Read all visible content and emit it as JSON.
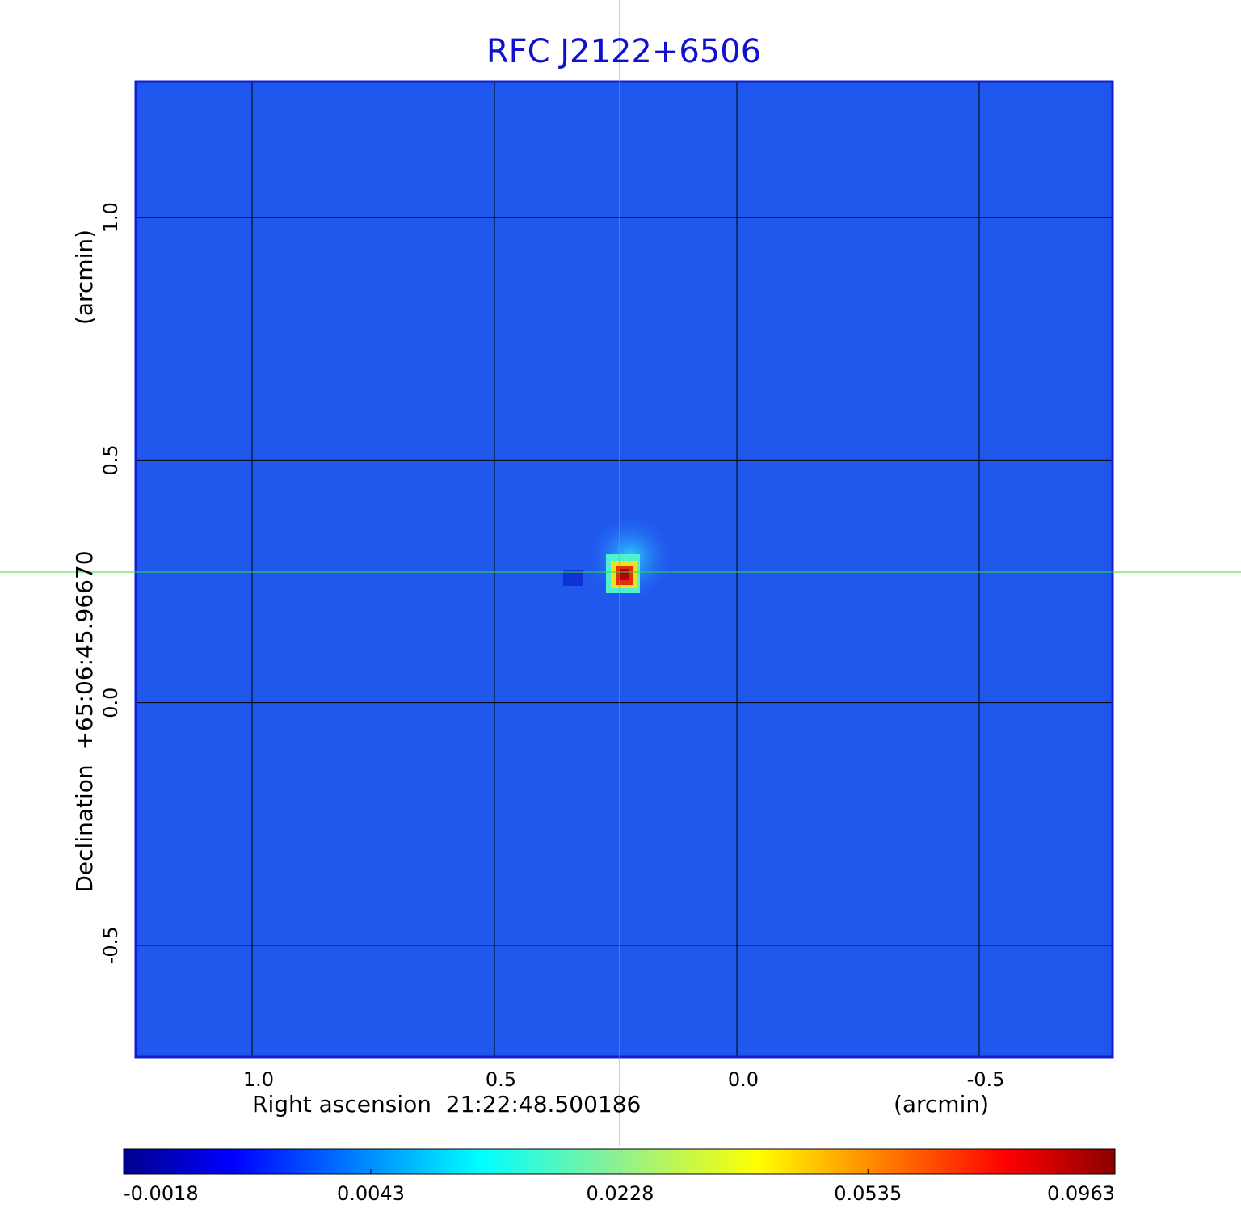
{
  "chart_data": {
    "type": "image",
    "title": "RFC J2122+6506",
    "x_label": "Right ascension  21:22:48.500186",
    "x_unit": "(arcmin)",
    "y_label": "Declination  +65:06:45.96670",
    "y_unit": "(arcmin)",
    "xlim": [
      1.24,
      -0.775
    ],
    "ylim": [
      -0.73,
      1.28
    ],
    "xticks": [
      {
        "value": 1,
        "label": "1.0"
      },
      0.5,
      {
        "value": 0,
        "label": "0.0"
      },
      -0.5
    ],
    "yticks": [
      {
        "value": 1,
        "label": "1.0"
      },
      0.5,
      {
        "value": 0,
        "label": "0.0"
      },
      -0.5
    ],
    "grid": true,
    "colorbar": {
      "clim": [
        -0.0018,
        0.0963
      ],
      "scale": "sqrt",
      "colormap": "jet",
      "ticks": [
        -0.0018,
        0.0043,
        0.0228,
        0.0535,
        0.0963
      ]
    }
  }
}
